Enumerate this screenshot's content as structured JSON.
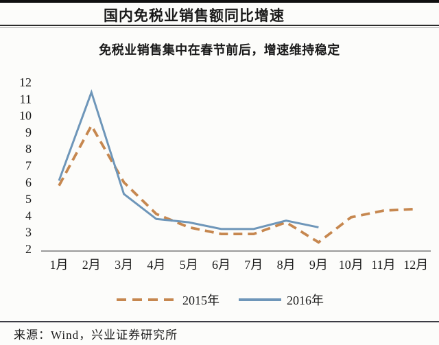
{
  "chart_data": {
    "type": "line",
    "title": "国内免税业销售额同比增速",
    "subtitle": "免税业销售集中在春节前后，增速维持稳定",
    "categories": [
      "1月",
      "2月",
      "3月",
      "4月",
      "5月",
      "6月",
      "7月",
      "8月",
      "9月",
      "10月",
      "11月",
      "12月"
    ],
    "series": [
      {
        "name": "2015年",
        "line_style": "dashed",
        "color": "#C6874F",
        "values": [
          5.8,
          9.4,
          6.0,
          4.1,
          3.3,
          2.9,
          2.9,
          3.6,
          2.4,
          3.9,
          4.3,
          4.4
        ]
      },
      {
        "name": "2016年",
        "line_style": "solid",
        "color": "#6E96B9",
        "values": [
          6.1,
          11.4,
          5.3,
          3.8,
          3.6,
          3.2,
          3.2,
          3.7,
          3.3,
          null,
          null,
          null
        ]
      }
    ],
    "ylim": [
      2,
      12
    ],
    "yticks": [
      12,
      11,
      10,
      9,
      8,
      7,
      6,
      5,
      4,
      3,
      2
    ],
    "xlabel": "",
    "ylabel": "",
    "grid": false,
    "legend_position": "bottom"
  },
  "colors": {
    "axis_line": "#9a9a9a",
    "text": "#1a1a1a"
  },
  "footer": {
    "source_label": "来源：Wind，兴业证券研究所"
  }
}
